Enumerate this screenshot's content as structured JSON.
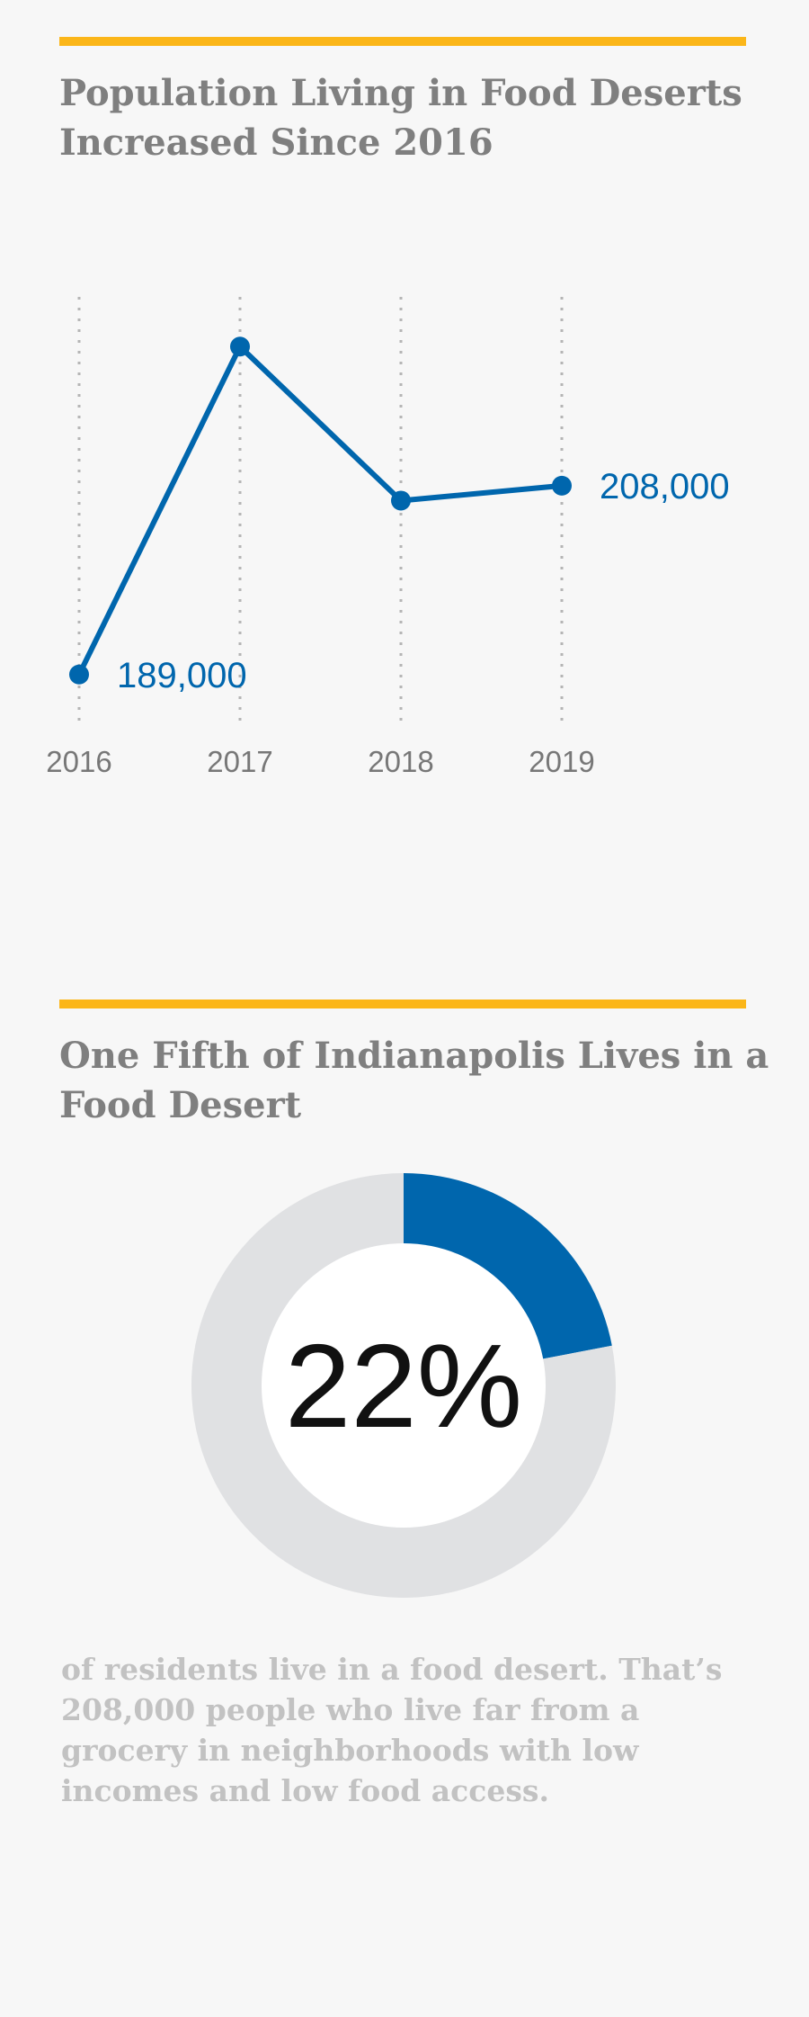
{
  "section1": {
    "title": "Population Living in Food Deserts Increased Since 2016"
  },
  "section2": {
    "title": "One Fifth of Indianapolis Lives in a Food Desert",
    "caption": "of residents live in a food desert. That’s 208,000 people who live far from a grocery in neighborhoods with low incomes and low food access."
  },
  "colors": {
    "accent_rule": "#fbb619",
    "series": "#0066ad",
    "donut_track": "#e0e1e3",
    "title_text": "#7f7f7f",
    "caption_text": "#c2c2c2"
  },
  "chart_data": [
    {
      "type": "line",
      "title": "Population Living in Food Deserts Increased Since 2016",
      "x": [
        "2016",
        "2017",
        "2018",
        "2019"
      ],
      "series": [
        {
          "values": [
            189000,
            222000,
            206500,
            208000
          ],
          "labels": [
            "189,000",
            "",
            "",
            "208,000"
          ]
        }
      ],
      "ylim": [
        184000,
        227000
      ],
      "grid": "vertical dotted lines at each year",
      "xlabel": "",
      "ylabel": ""
    },
    {
      "type": "pie",
      "title": "One Fifth of Indianapolis Lives in a Food Desert",
      "style": "donut",
      "slices": [
        {
          "value": 22,
          "color": "#0066ad"
        },
        {
          "value": 78,
          "color": "#e0e1e3"
        }
      ],
      "center_label": "22%"
    }
  ]
}
